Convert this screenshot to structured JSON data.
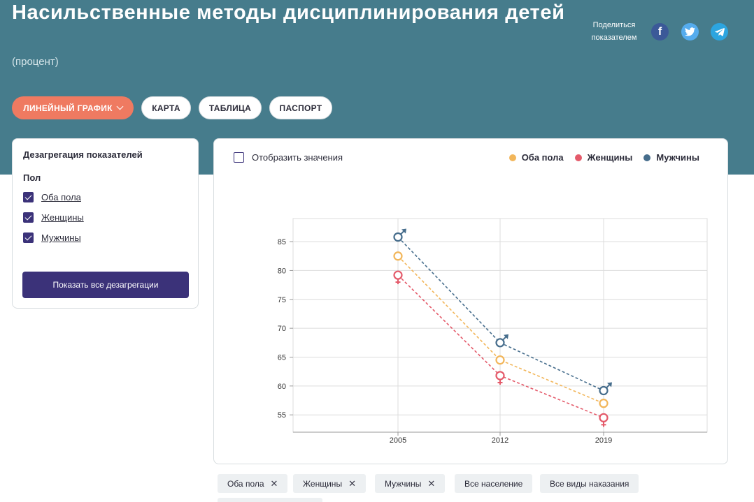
{
  "header": {
    "title": "Насильственные методы дисциплинирования детей",
    "unit": "(процент)",
    "share_label": "Поделиться показателем",
    "social": [
      "facebook-icon",
      "twitter-icon",
      "telegram-icon"
    ]
  },
  "tabs": [
    {
      "label": "ЛИНЕЙНЫЙ ГРАФИК",
      "active": true
    },
    {
      "label": "КАРТА",
      "active": false
    },
    {
      "label": "ТАБЛИЦА",
      "active": false
    },
    {
      "label": "ПАСПОРТ",
      "active": false
    }
  ],
  "filters": {
    "title": "Дезагрегация показателей",
    "group_label": "Пол",
    "items": [
      {
        "label": "Оба пола",
        "checked": true
      },
      {
        "label": "Женщины",
        "checked": true
      },
      {
        "label": "Мужчины",
        "checked": true
      }
    ],
    "show_all_button": "Показать все дезагрегации"
  },
  "chart_controls": {
    "show_values_label": "Отобразить значения",
    "show_values_checked": false
  },
  "chips": [
    {
      "label": "Оба пола",
      "removable": true
    },
    {
      "label": "Женщины",
      "removable": true
    },
    {
      "label": "Мужчины",
      "removable": true
    },
    {
      "label": "Все население",
      "removable": false
    },
    {
      "label": "Все виды наказания",
      "removable": false
    }
  ],
  "chart_data": {
    "type": "line",
    "title": "",
    "xlabel": "",
    "ylabel": "",
    "x": [
      2005,
      2012,
      2019
    ],
    "x_tick_labels": [
      "2005",
      "2012",
      "2019"
    ],
    "ylim": [
      52,
      89
    ],
    "y_ticks": [
      55,
      60,
      65,
      70,
      75,
      80,
      85
    ],
    "y_tick_labels": [
      "55",
      "60",
      "65",
      "70",
      "75",
      "80",
      "85"
    ],
    "grid": true,
    "legend_position": "top-right",
    "series": [
      {
        "name": "Оба пола",
        "color": "#f2b65a",
        "values": [
          82.5,
          64.5,
          57.0
        ],
        "marker": "circle"
      },
      {
        "name": "Женщины",
        "color": "#e45a6a",
        "values": [
          79.2,
          61.8,
          54.5
        ],
        "marker": "female-icon"
      },
      {
        "name": "Мужчины",
        "color": "#466d8c",
        "values": [
          85.8,
          67.5,
          59.2
        ],
        "marker": "male-icon"
      }
    ]
  }
}
